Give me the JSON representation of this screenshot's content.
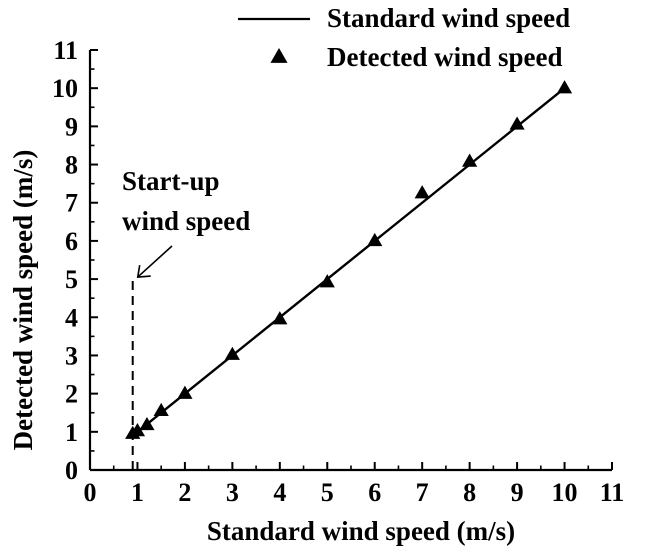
{
  "chart_data": {
    "type": "scatter",
    "xlabel": "Standard wind speed (m/s)",
    "ylabel": "Detected wind speed (m/s)",
    "xlim": [
      0,
      11
    ],
    "ylim": [
      0,
      11
    ],
    "x_ticks": [
      "0",
      "1",
      "2",
      "3",
      "4",
      "5",
      "6",
      "7",
      "8",
      "9",
      "10",
      "11"
    ],
    "y_ticks": [
      "0",
      "1",
      "2",
      "3",
      "4",
      "5",
      "6",
      "7",
      "8",
      "9",
      "10",
      "11"
    ],
    "grid": false,
    "legend_position": "top-right",
    "series": [
      {
        "name": "Standard wind speed",
        "type": "line",
        "x": [
          0.9,
          10
        ],
        "y": [
          0.9,
          10
        ]
      },
      {
        "name": "Detected wind speed",
        "type": "scatter",
        "marker": "triangle",
        "x": [
          0.9,
          1.0,
          1.2,
          1.5,
          2.0,
          3.0,
          4.0,
          5.0,
          6.0,
          7.0,
          8.0,
          9.0,
          10.0
        ],
        "y": [
          0.95,
          1.02,
          1.18,
          1.55,
          2.0,
          3.02,
          3.95,
          4.92,
          6.0,
          7.25,
          8.08,
          9.05,
          10.0
        ]
      }
    ],
    "annotations": [
      {
        "lines": [
          "Start-up",
          "wind speed"
        ],
        "marker_x": 0.9,
        "marker_y_range": [
          0,
          5
        ]
      }
    ],
    "colors": {
      "ink": "#000000",
      "background": "#ffffff"
    }
  }
}
